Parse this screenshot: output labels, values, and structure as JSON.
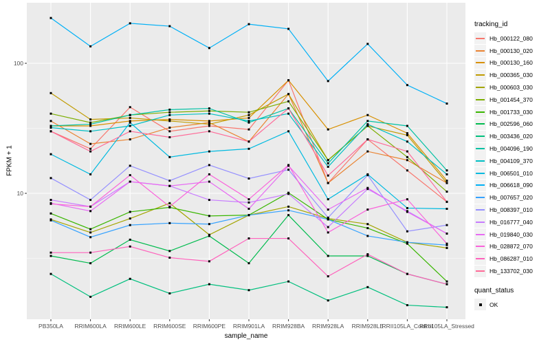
{
  "chart_data": {
    "type": "line",
    "xlabel": "sample_name",
    "ylabel": "FPKM + 1",
    "y_scale": "log10",
    "ylim": [
      1.1,
      280
    ],
    "y_ticks": [
      {
        "label": "100",
        "value": 100
      },
      {
        "label": "10",
        "value": 10
      }
    ],
    "y_minor_ticks": [
      31.62,
      3.162
    ],
    "grid": "gray panel, white gridlines (ggplot2 style)",
    "legend_position": "right",
    "legend_title": "tracking_id",
    "legend2_title": "quant_status",
    "quant_status_items": [
      {
        "label": "OK",
        "marker": "black-square"
      }
    ],
    "point_marker": "black-square",
    "categories": [
      "PB350LA",
      "RRIM600LA",
      "RRIM600LE",
      "RRIM600SE",
      "RRIM600PE",
      "RRIM901LA",
      "RRIM928BA",
      "RRIM928LA",
      "RRIM928LE",
      "RRII105LA_Control",
      "RRII105LA_Stressed"
    ],
    "series": [
      {
        "name": "Hb_000122_080",
        "color": "#F8766D",
        "values": [
          30,
          22,
          46,
          30,
          33,
          31,
          74,
          12,
          26,
          15,
          8.6
        ]
      },
      {
        "name": "Hb_000130_020",
        "color": "#EA8331",
        "values": [
          36,
          24,
          26,
          32,
          35,
          25,
          58,
          12,
          21,
          18,
          12
        ]
      },
      {
        "name": "Hb_000130_160",
        "color": "#D89000",
        "values": [
          33,
          33,
          36,
          37,
          36,
          38,
          74,
          31,
          40,
          29,
          12.5
        ]
      },
      {
        "name": "Hb_000365_030",
        "color": "#C09B00",
        "values": [
          59,
          37,
          38,
          36,
          34,
          40,
          58,
          18,
          33,
          28,
          12
        ]
      },
      {
        "name": "Hb_000603_030",
        "color": "#A3A500",
        "values": [
          6.3,
          5.0,
          6.4,
          8.4,
          4.8,
          6.8,
          7.9,
          6.4,
          5.8,
          4.2,
          3.8
        ]
      },
      {
        "name": "Hb_001454_370",
        "color": "#7CAE00",
        "values": [
          41,
          35,
          40,
          42,
          43,
          42,
          51,
          18,
          33,
          19,
          10.3
        ]
      },
      {
        "name": "Hb_001733_030",
        "color": "#39B600",
        "values": [
          7.0,
          5.3,
          7.2,
          7.8,
          6.7,
          6.8,
          10.1,
          6.3,
          5.4,
          4.1,
          2.1
        ]
      },
      {
        "name": "Hb_002596_060",
        "color": "#00BB4E",
        "values": [
          3.3,
          2.9,
          4.4,
          3.6,
          4.7,
          2.9,
          6.8,
          3.3,
          3.3,
          2.4,
          2.0
        ]
      },
      {
        "name": "Hb_003436_020",
        "color": "#00BF7D",
        "values": [
          2.4,
          1.6,
          2.2,
          1.7,
          2.0,
          1.8,
          2.1,
          1.5,
          1.9,
          1.38,
          1.33
        ]
      },
      {
        "name": "Hb_004096_190",
        "color": "#00C1A3",
        "values": [
          33,
          34,
          40,
          44,
          45,
          35,
          45,
          17,
          36,
          33,
          15
        ]
      },
      {
        "name": "Hb_004109_370",
        "color": "#00BFC4",
        "values": [
          32,
          30,
          33,
          40,
          41,
          36,
          41,
          16,
          34,
          25,
          14
        ]
      },
      {
        "name": "Hb_006501_010",
        "color": "#00BAE0",
        "values": [
          20,
          14,
          35,
          19,
          21,
          22,
          30,
          9.0,
          14,
          7.7,
          7.6
        ]
      },
      {
        "name": "Hb_006618_090",
        "color": "#00B0F6",
        "values": [
          223,
          135,
          203,
          193,
          131,
          200,
          184,
          73,
          141,
          68,
          49
        ]
      },
      {
        "name": "Hb_007657_020",
        "color": "#35A2FF",
        "values": [
          6.2,
          4.6,
          5.7,
          5.9,
          5.8,
          6.8,
          7.4,
          6.3,
          4.7,
          4.2,
          4.0
        ]
      },
      {
        "name": "Hb_008397_010",
        "color": "#9590FF",
        "values": [
          13.1,
          8.9,
          16.3,
          12.5,
          16.5,
          13.0,
          15.2,
          6.5,
          13.8,
          5.1,
          5.7
        ]
      },
      {
        "name": "Hb_016777_040",
        "color": "#C77CFF",
        "values": [
          8.9,
          7.9,
          12.3,
          11.4,
          8.9,
          8.5,
          9.9,
          5.5,
          10.8,
          7.3,
          4.9
        ]
      },
      {
        "name": "Hb_019840_030",
        "color": "#E76BF3",
        "values": [
          8.4,
          7.3,
          12.3,
          11.4,
          12.3,
          7.6,
          16.3,
          7.5,
          11.0,
          7.2,
          4.9
        ]
      },
      {
        "name": "Hb_028872_070",
        "color": "#FA62DB",
        "values": [
          8.3,
          7.9,
          13.8,
          7.9,
          14,
          9.0,
          16.5,
          5.0,
          7.5,
          9.0,
          4.1
        ]
      },
      {
        "name": "Hb_086287_010",
        "color": "#FF62BC",
        "values": [
          3.5,
          3.5,
          3.9,
          3.2,
          3.0,
          4.5,
          4.5,
          2.3,
          3.4,
          2.4,
          2.0
        ]
      },
      {
        "name": "Hb_133702_030",
        "color": "#FF6A98",
        "values": [
          30,
          21,
          30,
          27,
          30,
          25,
          45,
          13.7,
          26,
          21,
          8.6
        ]
      }
    ]
  },
  "colors": {
    "panel_bg": "#EBEBEB",
    "gridline": "#FFFFFF",
    "axis_text": "#4D4D4D",
    "tick_mark": "#333333",
    "title_text": "#000000",
    "legend_key_bg": "#F2F2F2",
    "point": "#000000"
  }
}
